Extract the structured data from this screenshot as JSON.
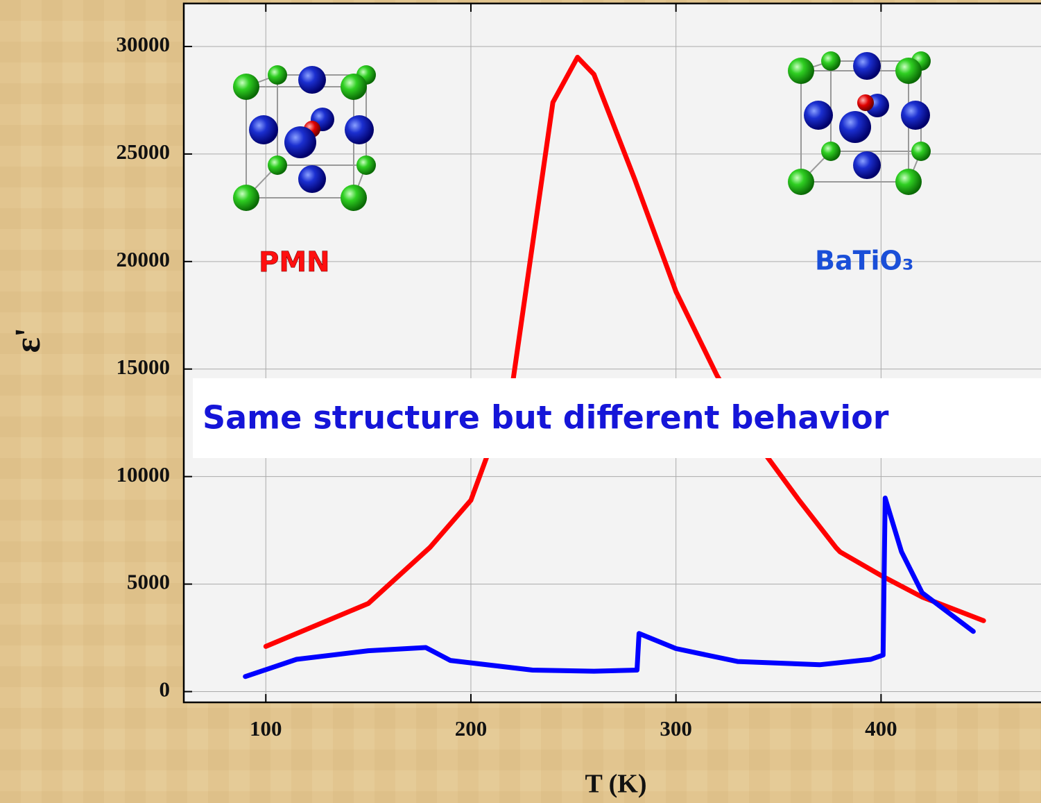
{
  "chart_data": {
    "type": "line",
    "x_label": "T (K)",
    "y_label": "ε'",
    "annotation": "Same structure  but different behavior",
    "xlim": [
      60,
      478
    ],
    "ylim": [
      -500,
      32000
    ],
    "xticks": [
      100,
      200,
      300,
      400
    ],
    "yticks": [
      0,
      5000,
      10000,
      15000,
      20000,
      25000,
      30000
    ],
    "grid": true,
    "series": [
      {
        "name": "PMN",
        "color": "#ff0000",
        "x": [
          100,
          150,
          180,
          200,
          220,
          240,
          252,
          260,
          280,
          300,
          320,
          340,
          360,
          378,
          380,
          400,
          420,
          450
        ],
        "values": [
          2100,
          4100,
          6700,
          8900,
          14100,
          27400,
          29500,
          28700,
          23800,
          18600,
          14700,
          11500,
          8900,
          6700,
          6500,
          5400,
          4400,
          3300
        ]
      },
      {
        "name": "BaTiO₃",
        "color": "#0000ff",
        "x": [
          90,
          115,
          150,
          178,
          190,
          230,
          260,
          281,
          282,
          300,
          330,
          370,
          395,
          401,
          402,
          410,
          420,
          445
        ],
        "values": [
          700,
          1500,
          1900,
          2050,
          1450,
          1000,
          950,
          1000,
          2700,
          2000,
          1400,
          1250,
          1500,
          1700,
          9000,
          6500,
          4600,
          2800
        ]
      }
    ]
  }
}
